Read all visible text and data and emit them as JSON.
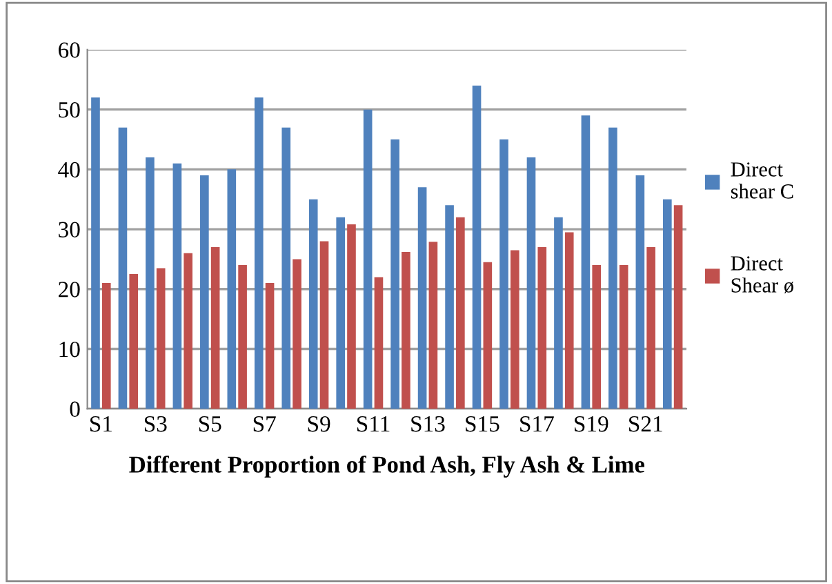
{
  "chart_data": {
    "type": "bar",
    "xlabel": "Different Proportion of Pond Ash, Fly Ash & Lime",
    "categories": [
      "S1",
      null,
      "S3",
      null,
      "S5",
      null,
      "S7",
      null,
      "S9",
      null,
      "S11",
      null,
      "S13",
      null,
      "S15",
      null,
      "S17",
      null,
      "S19",
      null,
      "S21",
      null
    ],
    "series": [
      {
        "name": "Direct shear C",
        "color": "#4f81bd",
        "values": [
          52,
          47,
          42,
          41,
          39,
          40,
          52,
          47,
          35,
          32,
          50,
          45,
          37,
          34,
          54,
          45,
          42,
          32,
          49,
          47,
          39,
          35
        ]
      },
      {
        "name": "Direct Shear ø",
        "color": "#c0504d",
        "values": [
          21,
          22.5,
          23.5,
          26,
          27,
          24,
          21,
          25,
          28,
          30.8,
          22,
          26.2,
          27.9,
          32,
          24.5,
          26.5,
          27,
          29.5,
          24,
          24,
          27,
          34
        ]
      }
    ],
    "ylim": [
      0,
      60
    ],
    "yticks": [
      0,
      10,
      20,
      30,
      40,
      50,
      60
    ],
    "grid": "y",
    "legend": "right"
  }
}
